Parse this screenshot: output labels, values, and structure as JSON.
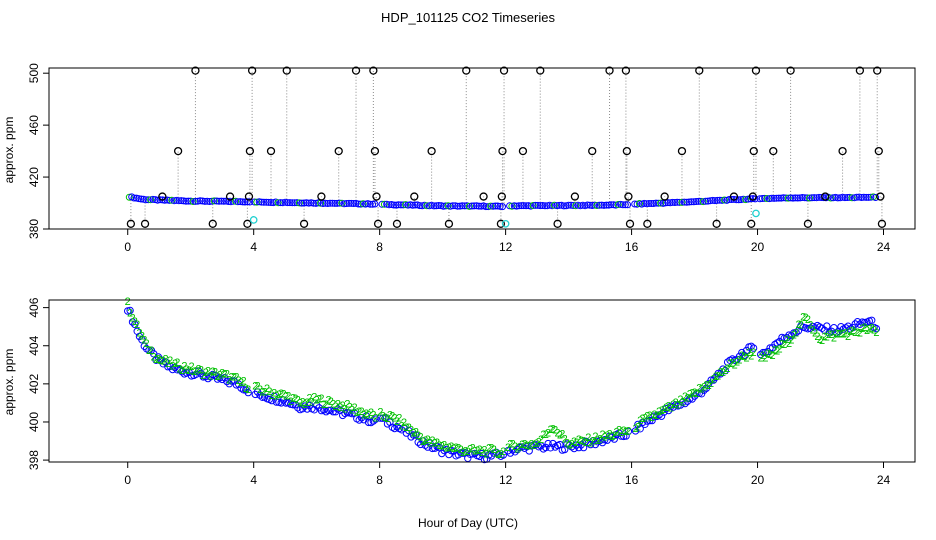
{
  "figure": {
    "title": "HDP_101125  CO2 Timeseries",
    "xlabel": "Hour of Day (UTC)"
  },
  "chart_data": [
    {
      "type": "scatter",
      "panel": "top",
      "xlabel": "",
      "ylabel": "approx. ppm",
      "xlim": [
        -2.5,
        25
      ],
      "ylim": [
        380,
        504
      ],
      "xticks": [
        "0",
        "4",
        "8",
        "12",
        "16",
        "20",
        "24"
      ],
      "yticks": [
        "380",
        "420",
        "460",
        "500"
      ],
      "drop_lines": true,
      "baseline": [
        [
          0.05,
          404.8
        ],
        [
          0.5,
          402.8
        ],
        [
          1,
          402.3
        ],
        [
          2,
          401.5
        ],
        [
          3,
          401.3
        ],
        [
          3.9,
          401.0
        ],
        [
          4.0,
          400.8
        ],
        [
          5,
          400.5
        ],
        [
          6,
          400.0
        ],
        [
          7,
          399.6
        ],
        [
          7.9,
          399.2
        ],
        [
          8.0,
          399.0
        ],
        [
          9,
          398.4
        ],
        [
          10,
          397.8
        ],
        [
          11,
          397.6
        ],
        [
          11.9,
          397.4
        ],
        [
          12.1,
          397.8
        ],
        [
          13,
          398.0
        ],
        [
          14,
          398.1
        ],
        [
          15,
          398.3
        ],
        [
          15.9,
          398.8
        ],
        [
          16.1,
          399.2
        ],
        [
          17,
          400.0
        ],
        [
          18,
          401.0
        ],
        [
          19,
          402.3
        ],
        [
          19.9,
          403.2
        ],
        [
          20.1,
          403.4
        ],
        [
          21,
          404.0
        ],
        [
          22,
          404.1
        ],
        [
          23,
          404.2
        ],
        [
          23.8,
          404.5
        ]
      ],
      "gaps": [
        3.95,
        7.95,
        12.0,
        16.0,
        20.0
      ],
      "spikes": [
        {
          "x": 0.1,
          "y": 384
        },
        {
          "x": 0.55,
          "y": 384
        },
        {
          "x": 1.1,
          "y": 405
        },
        {
          "x": 1.6,
          "y": 440
        },
        {
          "x": 2.15,
          "y": 502
        },
        {
          "x": 2.7,
          "y": 384
        },
        {
          "x": 3.25,
          "y": 405
        },
        {
          "x": 3.8,
          "y": 384
        },
        {
          "x": 3.85,
          "y": 405
        },
        {
          "x": 3.88,
          "y": 440
        },
        {
          "x": 3.95,
          "y": 502
        },
        {
          "x": 4.55,
          "y": 440
        },
        {
          "x": 5.05,
          "y": 502
        },
        {
          "x": 5.6,
          "y": 384
        },
        {
          "x": 6.15,
          "y": 405
        },
        {
          "x": 6.7,
          "y": 440
        },
        {
          "x": 7.25,
          "y": 502
        },
        {
          "x": 7.8,
          "y": 502
        },
        {
          "x": 7.85,
          "y": 440
        },
        {
          "x": 7.9,
          "y": 405
        },
        {
          "x": 7.95,
          "y": 384
        },
        {
          "x": 8.55,
          "y": 384
        },
        {
          "x": 9.1,
          "y": 405
        },
        {
          "x": 9.65,
          "y": 440
        },
        {
          "x": 10.2,
          "y": 384
        },
        {
          "x": 10.75,
          "y": 502
        },
        {
          "x": 11.3,
          "y": 405
        },
        {
          "x": 11.85,
          "y": 384
        },
        {
          "x": 11.88,
          "y": 405
        },
        {
          "x": 11.9,
          "y": 440
        },
        {
          "x": 11.95,
          "y": 502
        },
        {
          "x": 12.55,
          "y": 440
        },
        {
          "x": 13.1,
          "y": 502
        },
        {
          "x": 13.65,
          "y": 384
        },
        {
          "x": 14.2,
          "y": 405
        },
        {
          "x": 14.75,
          "y": 440
        },
        {
          "x": 15.3,
          "y": 502
        },
        {
          "x": 15.82,
          "y": 502
        },
        {
          "x": 15.85,
          "y": 440
        },
        {
          "x": 15.9,
          "y": 405
        },
        {
          "x": 15.95,
          "y": 384
        },
        {
          "x": 16.5,
          "y": 384
        },
        {
          "x": 17.05,
          "y": 405
        },
        {
          "x": 17.6,
          "y": 440
        },
        {
          "x": 18.15,
          "y": 502
        },
        {
          "x": 18.7,
          "y": 384
        },
        {
          "x": 19.25,
          "y": 405
        },
        {
          "x": 19.8,
          "y": 384
        },
        {
          "x": 19.85,
          "y": 405
        },
        {
          "x": 19.88,
          "y": 440
        },
        {
          "x": 19.95,
          "y": 502
        },
        {
          "x": 20.5,
          "y": 440
        },
        {
          "x": 21.05,
          "y": 502
        },
        {
          "x": 21.6,
          "y": 384
        },
        {
          "x": 22.15,
          "y": 405
        },
        {
          "x": 22.7,
          "y": 440
        },
        {
          "x": 23.25,
          "y": 502
        },
        {
          "x": 23.8,
          "y": 502
        },
        {
          "x": 23.85,
          "y": 440
        },
        {
          "x": 23.9,
          "y": 405
        },
        {
          "x": 23.95,
          "y": 384
        }
      ],
      "cyan_points": [
        {
          "x": 4.0,
          "y": 387
        },
        {
          "x": 12.0,
          "y": 384
        },
        {
          "x": 19.95,
          "y": 392
        }
      ],
      "colors": {
        "baseline": "#0000ff",
        "baseline_alt": "#00c000",
        "spike": "#000000",
        "cyan": "#20d0d0",
        "drop_line": "#8c8c8c"
      }
    },
    {
      "type": "scatter",
      "panel": "bottom",
      "xlabel": "Hour of Day (UTC)",
      "ylabel": "approx. ppm",
      "xlim": [
        -2.5,
        25
      ],
      "ylim": [
        397.9,
        406.4
      ],
      "xticks": [
        "0",
        "4",
        "8",
        "12",
        "16",
        "20",
        "24"
      ],
      "yticks": [
        "398",
        "400",
        "402",
        "404",
        "406"
      ],
      "gaps": [
        3.95,
        7.95,
        12.0,
        16.0,
        20.0
      ],
      "series": [
        {
          "name": "",
          "marker": "circle",
          "color": "#0000ff",
          "values": [
            [
              0.0,
              406.0
            ],
            [
              0.2,
              405.2
            ],
            [
              0.4,
              404.4
            ],
            [
              0.6,
              403.9
            ],
            [
              0.8,
              403.5
            ],
            [
              1.0,
              403.2
            ],
            [
              1.3,
              402.9
            ],
            [
              1.6,
              402.7
            ],
            [
              2.0,
              402.6
            ],
            [
              2.5,
              402.4
            ],
            [
              3.0,
              402.2
            ],
            [
              3.5,
              402.0
            ],
            [
              3.9,
              401.6
            ],
            [
              4.0,
              401.5
            ],
            [
              4.5,
              401.3
            ],
            [
              5.0,
              401.1
            ],
            [
              5.5,
              400.8
            ],
            [
              6.0,
              400.8
            ],
            [
              6.5,
              400.6
            ],
            [
              7.0,
              400.4
            ],
            [
              7.5,
              400.2
            ],
            [
              7.9,
              400.0
            ],
            [
              8.0,
              400.2
            ],
            [
              8.5,
              399.8
            ],
            [
              9.0,
              399.3
            ],
            [
              9.5,
              398.8
            ],
            [
              10.0,
              398.5
            ],
            [
              10.5,
              398.3
            ],
            [
              11.0,
              398.2
            ],
            [
              11.5,
              398.2
            ],
            [
              11.9,
              398.3
            ],
            [
              12.1,
              398.5
            ],
            [
              12.5,
              398.6
            ],
            [
              13.0,
              398.7
            ],
            [
              13.5,
              398.7
            ],
            [
              14.0,
              398.7
            ],
            [
              14.5,
              398.8
            ],
            [
              15.0,
              399.0
            ],
            [
              15.5,
              399.2
            ],
            [
              15.9,
              399.4
            ],
            [
              16.1,
              399.6
            ],
            [
              16.5,
              400.0
            ],
            [
              17.0,
              400.5
            ],
            [
              17.5,
              400.9
            ],
            [
              18.0,
              401.3
            ],
            [
              18.5,
              402.0
            ],
            [
              19.0,
              402.9
            ],
            [
              19.5,
              403.6
            ],
            [
              19.9,
              403.9
            ],
            [
              20.1,
              403.5
            ],
            [
              20.5,
              404.0
            ],
            [
              21.0,
              404.6
            ],
            [
              21.5,
              405.0
            ],
            [
              22.0,
              404.9
            ],
            [
              22.5,
              404.8
            ],
            [
              23.0,
              405.0
            ],
            [
              23.5,
              405.3
            ],
            [
              23.8,
              405.0
            ]
          ]
        },
        {
          "name": "",
          "marker": "2",
          "color": "#00c000",
          "values": [
            [
              0.0,
              406.2
            ],
            [
              0.3,
              405.0
            ],
            [
              0.6,
              404.0
            ],
            [
              1.0,
              403.3
            ],
            [
              1.5,
              403.0
            ],
            [
              2.0,
              402.8
            ],
            [
              2.5,
              402.6
            ],
            [
              3.0,
              402.5
            ],
            [
              3.5,
              402.2
            ],
            [
              3.9,
              401.8
            ],
            [
              4.0,
              401.8
            ],
            [
              4.5,
              401.6
            ],
            [
              5.0,
              401.4
            ],
            [
              5.5,
              401.0
            ],
            [
              6.0,
              401.2
            ],
            [
              6.5,
              401.0
            ],
            [
              7.0,
              400.8
            ],
            [
              7.5,
              400.5
            ],
            [
              7.9,
              400.3
            ],
            [
              8.0,
              400.4
            ],
            [
              8.5,
              400.2
            ],
            [
              9.0,
              399.6
            ],
            [
              9.5,
              399.0
            ],
            [
              10.0,
              398.8
            ],
            [
              10.5,
              398.6
            ],
            [
              11.0,
              398.5
            ],
            [
              11.5,
              398.5
            ],
            [
              11.9,
              398.4
            ],
            [
              12.1,
              398.7
            ],
            [
              12.5,
              398.8
            ],
            [
              13.0,
              398.9
            ],
            [
              13.5,
              399.8
            ],
            [
              14.0,
              398.9
            ],
            [
              14.5,
              399.0
            ],
            [
              15.0,
              399.2
            ],
            [
              15.5,
              399.4
            ],
            [
              15.9,
              399.6
            ],
            [
              16.1,
              399.8
            ],
            [
              16.5,
              400.2
            ],
            [
              17.0,
              400.6
            ],
            [
              17.5,
              401.0
            ],
            [
              18.0,
              401.5
            ],
            [
              18.5,
              402.1
            ],
            [
              19.0,
              402.8
            ],
            [
              19.5,
              403.4
            ],
            [
              19.9,
              403.7
            ],
            [
              20.1,
              403.3
            ],
            [
              20.5,
              403.6
            ],
            [
              21.0,
              404.3
            ],
            [
              21.5,
              405.5
            ],
            [
              22.0,
              404.4
            ],
            [
              22.5,
              404.6
            ],
            [
              23.0,
              404.7
            ],
            [
              23.5,
              404.9
            ],
            [
              23.8,
              404.7
            ]
          ]
        }
      ]
    }
  ]
}
